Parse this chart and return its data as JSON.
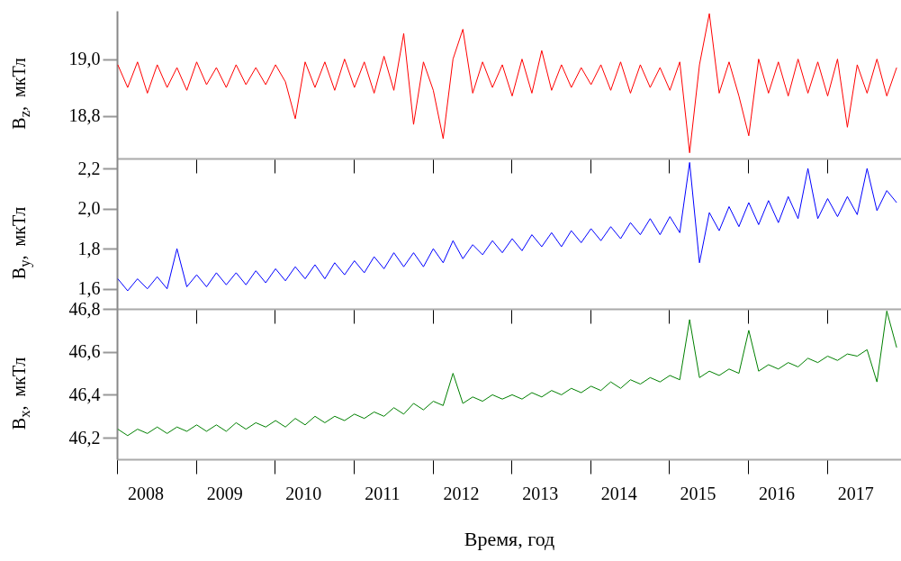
{
  "chart_data": [
    {
      "type": "line",
      "ylabel": "B$_{z}$,  мкТл",
      "tick_labels": "y",
      "x": [
        2007.65,
        2007.775,
        2007.9,
        2008.025,
        2008.15,
        2008.275,
        2008.4,
        2008.525,
        2008.65,
        2008.775,
        2008.9,
        2009.025,
        2009.15,
        2009.275,
        2009.4,
        2009.525,
        2009.65,
        2009.775,
        2009.9,
        2010.025,
        2010.15,
        2010.275,
        2010.4,
        2010.525,
        2010.65,
        2010.775,
        2010.9,
        2011.025,
        2011.15,
        2011.275,
        2011.4,
        2011.525,
        2011.65,
        2011.775,
        2011.9,
        2012.025,
        2012.15,
        2012.275,
        2012.4,
        2012.525,
        2012.65,
        2012.775,
        2012.9,
        2013.025,
        2013.15,
        2013.275,
        2013.4,
        2013.525,
        2013.65,
        2013.775,
        2013.9,
        2014.025,
        2014.15,
        2014.275,
        2014.4,
        2014.525,
        2014.65,
        2014.775,
        2014.9,
        2015.025,
        2015.15,
        2015.275,
        2015.4,
        2015.525,
        2015.65,
        2015.775,
        2015.9,
        2016.025,
        2016.15,
        2016.275,
        2016.4,
        2016.525,
        2016.65,
        2016.775,
        2016.9,
        2017.025,
        2017.15,
        2017.275,
        2017.4,
        2017.525
      ],
      "series": [
        {
          "color": "#ff0000",
          "values": [
            18.98,
            18.9,
            18.99,
            18.88,
            18.98,
            18.9,
            18.97,
            18.89,
            18.99,
            18.91,
            18.97,
            18.9,
            18.98,
            18.91,
            18.97,
            18.91,
            18.98,
            18.92,
            18.79,
            18.99,
            18.9,
            18.99,
            18.89,
            19.0,
            18.9,
            18.99,
            18.88,
            19.01,
            18.89,
            19.09,
            18.77,
            18.99,
            18.89,
            18.72,
            19.0,
            19.105,
            18.88,
            18.99,
            18.9,
            18.98,
            18.87,
            19.0,
            18.88,
            19.03,
            18.89,
            18.98,
            18.9,
            18.97,
            18.91,
            18.98,
            18.89,
            18.99,
            18.88,
            18.98,
            18.9,
            18.97,
            18.89,
            18.99,
            18.67,
            18.98,
            19.16,
            18.88,
            18.99,
            18.87,
            18.73,
            19.0,
            18.88,
            18.99,
            18.87,
            19.0,
            18.88,
            18.99,
            18.87,
            19.0,
            18.76,
            18.98,
            18.88,
            19.0,
            18.87,
            18.97
          ]
        }
      ],
      "xlim": [
        2007.64,
        2017.58
      ],
      "xticks": [
        {
          "value": 2007.64,
          "label": null
        },
        {
          "value": 2008.64,
          "label": null
        },
        {
          "value": 2009.64,
          "label": null
        },
        {
          "value": 2010.64,
          "label": null
        },
        {
          "value": 2011.64,
          "label": null
        },
        {
          "value": 2012.64,
          "label": null
        },
        {
          "value": 2013.64,
          "label": null
        },
        {
          "value": 2014.64,
          "label": null
        },
        {
          "value": 2015.64,
          "label": null
        },
        {
          "value": 2016.64,
          "label": null
        }
      ],
      "ylim": [
        18.65,
        19.17
      ],
      "yticks": [
        {
          "value": 18.8,
          "label": "18,8"
        },
        {
          "value": 19.0,
          "label": "19,0"
        }
      ]
    },
    {
      "type": "line",
      "ylabel": "B$_{y}$,  мкТл",
      "tick_labels": "y",
      "x": [
        2007.65,
        2007.775,
        2007.9,
        2008.025,
        2008.15,
        2008.275,
        2008.4,
        2008.525,
        2008.65,
        2008.775,
        2008.9,
        2009.025,
        2009.15,
        2009.275,
        2009.4,
        2009.525,
        2009.65,
        2009.775,
        2009.9,
        2010.025,
        2010.15,
        2010.275,
        2010.4,
        2010.525,
        2010.65,
        2010.775,
        2010.9,
        2011.025,
        2011.15,
        2011.275,
        2011.4,
        2011.525,
        2011.65,
        2011.775,
        2011.9,
        2012.025,
        2012.15,
        2012.275,
        2012.4,
        2012.525,
        2012.65,
        2012.775,
        2012.9,
        2013.025,
        2013.15,
        2013.275,
        2013.4,
        2013.525,
        2013.65,
        2013.775,
        2013.9,
        2014.025,
        2014.15,
        2014.275,
        2014.4,
        2014.525,
        2014.65,
        2014.775,
        2014.9,
        2015.025,
        2015.15,
        2015.275,
        2015.4,
        2015.525,
        2015.65,
        2015.775,
        2015.9,
        2016.025,
        2016.15,
        2016.275,
        2016.4,
        2016.525,
        2016.65,
        2016.775,
        2016.9,
        2017.025,
        2017.15,
        2017.275,
        2017.4,
        2017.525
      ],
      "series": [
        {
          "color": "#0000ff",
          "values": [
            1.65,
            1.59,
            1.65,
            1.6,
            1.66,
            1.6,
            1.8,
            1.61,
            1.67,
            1.61,
            1.68,
            1.62,
            1.68,
            1.62,
            1.69,
            1.63,
            1.7,
            1.64,
            1.71,
            1.65,
            1.72,
            1.65,
            1.73,
            1.67,
            1.74,
            1.68,
            1.76,
            1.7,
            1.78,
            1.71,
            1.78,
            1.71,
            1.8,
            1.73,
            1.84,
            1.75,
            1.82,
            1.77,
            1.84,
            1.78,
            1.85,
            1.79,
            1.87,
            1.81,
            1.88,
            1.81,
            1.89,
            1.83,
            1.9,
            1.84,
            1.91,
            1.85,
            1.93,
            1.87,
            1.95,
            1.87,
            1.96,
            1.88,
            2.23,
            1.73,
            1.98,
            1.89,
            2.01,
            1.91,
            2.03,
            1.92,
            2.04,
            1.93,
            2.06,
            1.95,
            2.2,
            1.95,
            2.05,
            1.96,
            2.06,
            1.97,
            2.2,
            1.99,
            2.09,
            2.03
          ]
        }
      ],
      "xlim": [
        2007.64,
        2017.58
      ],
      "xticks": [
        {
          "value": 2007.64,
          "label": null
        },
        {
          "value": 2008.64,
          "label": null
        },
        {
          "value": 2009.64,
          "label": null
        },
        {
          "value": 2010.64,
          "label": null
        },
        {
          "value": 2011.64,
          "label": null
        },
        {
          "value": 2012.64,
          "label": null
        },
        {
          "value": 2013.64,
          "label": null
        },
        {
          "value": 2014.64,
          "label": null
        },
        {
          "value": 2015.64,
          "label": null
        },
        {
          "value": 2016.64,
          "label": null
        }
      ],
      "ylim": [
        1.5,
        2.25
      ],
      "yticks": [
        {
          "value": 1.6,
          "label": "1,6"
        },
        {
          "value": 1.8,
          "label": "1,8"
        },
        {
          "value": 2.0,
          "label": "2,0"
        },
        {
          "value": 2.2,
          "label": "2,2"
        }
      ]
    },
    {
      "type": "line",
      "ylabel": "B$_{x}$,  мкТл",
      "xlabel": "Время, год",
      "x": [
        2007.65,
        2007.775,
        2007.9,
        2008.025,
        2008.15,
        2008.275,
        2008.4,
        2008.525,
        2008.65,
        2008.775,
        2008.9,
        2009.025,
        2009.15,
        2009.275,
        2009.4,
        2009.525,
        2009.65,
        2009.775,
        2009.9,
        2010.025,
        2010.15,
        2010.275,
        2010.4,
        2010.525,
        2010.65,
        2010.775,
        2010.9,
        2011.025,
        2011.15,
        2011.275,
        2011.4,
        2011.525,
        2011.65,
        2011.775,
        2011.9,
        2012.025,
        2012.15,
        2012.275,
        2012.4,
        2012.525,
        2012.65,
        2012.775,
        2012.9,
        2013.025,
        2013.15,
        2013.275,
        2013.4,
        2013.525,
        2013.65,
        2013.775,
        2013.9,
        2014.025,
        2014.15,
        2014.275,
        2014.4,
        2014.525,
        2014.65,
        2014.775,
        2014.9,
        2015.025,
        2015.15,
        2015.275,
        2015.4,
        2015.525,
        2015.65,
        2015.775,
        2015.9,
        2016.025,
        2016.15,
        2016.275,
        2016.4,
        2016.525,
        2016.65,
        2016.775,
        2016.9,
        2017.025,
        2017.15,
        2017.275,
        2017.4,
        2017.525
      ],
      "series": [
        {
          "color": "#008000",
          "values": [
            46.24,
            46.21,
            46.24,
            46.22,
            46.25,
            46.22,
            46.25,
            46.23,
            46.26,
            46.23,
            46.26,
            46.23,
            46.27,
            46.24,
            46.27,
            46.25,
            46.28,
            46.25,
            46.29,
            46.26,
            46.3,
            46.27,
            46.3,
            46.28,
            46.31,
            46.29,
            46.32,
            46.3,
            46.34,
            46.31,
            46.36,
            46.33,
            46.37,
            46.35,
            46.5,
            46.36,
            46.39,
            46.37,
            46.4,
            46.38,
            46.4,
            46.38,
            46.41,
            46.39,
            46.42,
            46.4,
            46.43,
            46.41,
            46.44,
            46.42,
            46.46,
            46.43,
            46.47,
            46.45,
            46.48,
            46.46,
            46.49,
            46.47,
            46.75,
            46.48,
            46.51,
            46.49,
            46.52,
            46.5,
            46.7,
            46.51,
            46.54,
            46.52,
            46.55,
            46.53,
            46.57,
            46.55,
            46.58,
            46.56,
            46.59,
            46.58,
            46.61,
            46.46,
            46.79,
            46.62
          ]
        }
      ],
      "xlim": [
        2007.64,
        2017.58
      ],
      "xticks": [
        2008,
        2009,
        2010,
        2011,
        2012,
        2013,
        2014,
        2015,
        2016,
        2017,
        {
          "value": 2007.64,
          "label": null
        },
        {
          "value": 2008.64,
          "label": null
        },
        {
          "value": 2009.64,
          "label": null
        },
        {
          "value": 2010.64,
          "label": null
        },
        {
          "value": 2011.64,
          "label": null
        },
        {
          "value": 2012.64,
          "label": null
        },
        {
          "value": 2013.64,
          "label": null
        },
        {
          "value": 2014.64,
          "label": null
        },
        {
          "value": 2015.64,
          "label": null
        },
        {
          "value": 2016.64,
          "label": null
        }
      ],
      "ylim": [
        46.1,
        46.8
      ],
      "yticks": [
        {
          "value": 46.2,
          "label": "46,2"
        },
        {
          "value": 46.4,
          "label": "46,4"
        },
        {
          "value": 46.6,
          "label": "46,6"
        },
        {
          "value": 46.8,
          "label": "46,8"
        }
      ]
    }
  ]
}
